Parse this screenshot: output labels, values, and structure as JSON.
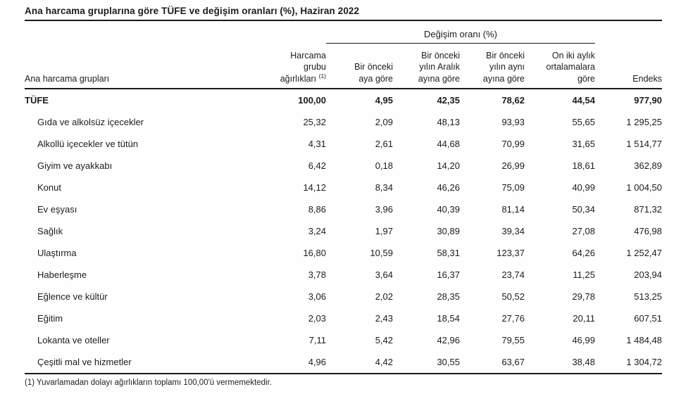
{
  "title": "Ana harcama gruplarına göre TÜFE ve değişim oranları (%), Haziran 2022",
  "table": {
    "group_header": "Değişim oranı (%)",
    "columns": {
      "groups": "Ana harcama grupları",
      "weights": "Harcama\ngrubu\nağırlıkları",
      "weights_marker": "(1)",
      "monthly": "Bir önceki\naya göre",
      "since_december": "Bir önceki\nyılın Aralık\nayına göre",
      "annual": "Bir önceki\nyılın aynı\nayına göre",
      "twelve_month_avg": "On iki aylık\nortalamalara\ngöre",
      "index": "Endeks"
    },
    "rows": [
      {
        "label": "TÜFE",
        "values": [
          "100,00",
          "4,95",
          "42,35",
          "78,62",
          "44,54",
          "977,90"
        ]
      },
      {
        "label": "Gıda ve alkolsüz içecekler",
        "values": [
          "25,32",
          "2,09",
          "48,13",
          "93,93",
          "55,65",
          "1 295,25"
        ]
      },
      {
        "label": "Alkollü içecekler ve tütün",
        "values": [
          "4,31",
          "2,61",
          "44,68",
          "70,99",
          "31,65",
          "1 514,77"
        ]
      },
      {
        "label": "Giyim ve ayakkabı",
        "values": [
          "6,42",
          "0,18",
          "14,20",
          "26,99",
          "18,61",
          "362,89"
        ]
      },
      {
        "label": "Konut",
        "values": [
          "14,12",
          "8,34",
          "46,26",
          "75,09",
          "40,99",
          "1 004,50"
        ]
      },
      {
        "label": "Ev eşyası",
        "values": [
          "8,86",
          "3,96",
          "40,39",
          "81,14",
          "50,34",
          "871,32"
        ]
      },
      {
        "label": "Sağlık",
        "values": [
          "3,24",
          "1,97",
          "30,89",
          "39,34",
          "27,08",
          "476,98"
        ]
      },
      {
        "label": "Ulaştırma",
        "values": [
          "16,80",
          "10,59",
          "58,31",
          "123,37",
          "64,26",
          "1 252,47"
        ]
      },
      {
        "label": "Haberleşme",
        "values": [
          "3,78",
          "3,64",
          "16,37",
          "23,74",
          "11,25",
          "203,94"
        ]
      },
      {
        "label": "Eğlence ve kültür",
        "values": [
          "3,06",
          "2,02",
          "28,35",
          "50,52",
          "29,78",
          "513,25"
        ]
      },
      {
        "label": "Eğitim",
        "values": [
          "2,03",
          "2,43",
          "18,54",
          "27,76",
          "20,11",
          "607,51"
        ]
      },
      {
        "label": "Lokanta ve oteller",
        "values": [
          "7,11",
          "5,42",
          "42,96",
          "79,55",
          "46,99",
          "1 484,48"
        ]
      },
      {
        "label": "Çeşitli mal ve hizmetler",
        "values": [
          "4,96",
          "4,42",
          "30,55",
          "63,67",
          "38,48",
          "1 304,72"
        ]
      }
    ]
  },
  "footnote": "(1) Yuvarlamadan dolayı ağırlıkların toplamı 100,00'ü vermemektedir."
}
